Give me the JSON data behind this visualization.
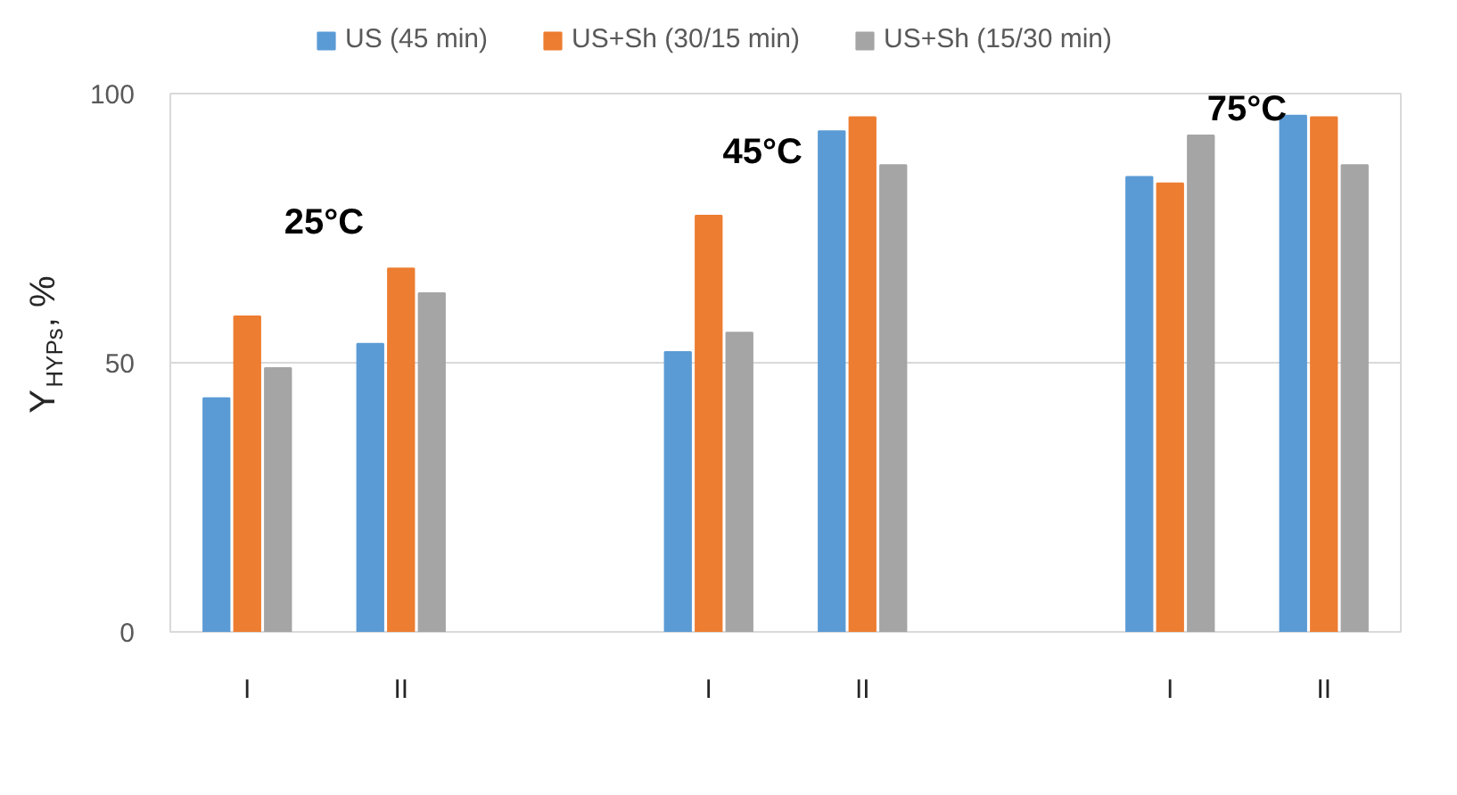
{
  "chart_data": {
    "type": "bar",
    "ylabel": "Y$_{HYPs}$, %",
    "categories": [
      "I",
      "II",
      null,
      "I",
      "II",
      null,
      "I",
      "II"
    ],
    "series": [
      {
        "name": "US (45 min)",
        "color": "#5b9bd5",
        "values": [
          43.4,
          53.5,
          null,
          52.0,
          93.0,
          null,
          84.5,
          95.9
        ]
      },
      {
        "name": "US+Sh (30/15 min)",
        "color": "#ed7d31",
        "values": [
          58.6,
          67.5,
          null,
          77.3,
          95.6,
          null,
          83.3,
          95.6
        ]
      },
      {
        "name": "US+Sh (15/30 min)",
        "color": "#a5a5a5",
        "values": [
          49.0,
          62.9,
          null,
          55.6,
          86.7,
          null,
          92.2,
          86.7
        ]
      }
    ],
    "annotations": [
      "25°C",
      "45°C",
      "75°C"
    ],
    "ylim": [
      0,
      100
    ],
    "yticks": [
      0,
      50,
      100
    ],
    "grid": "y",
    "legend": "top"
  }
}
